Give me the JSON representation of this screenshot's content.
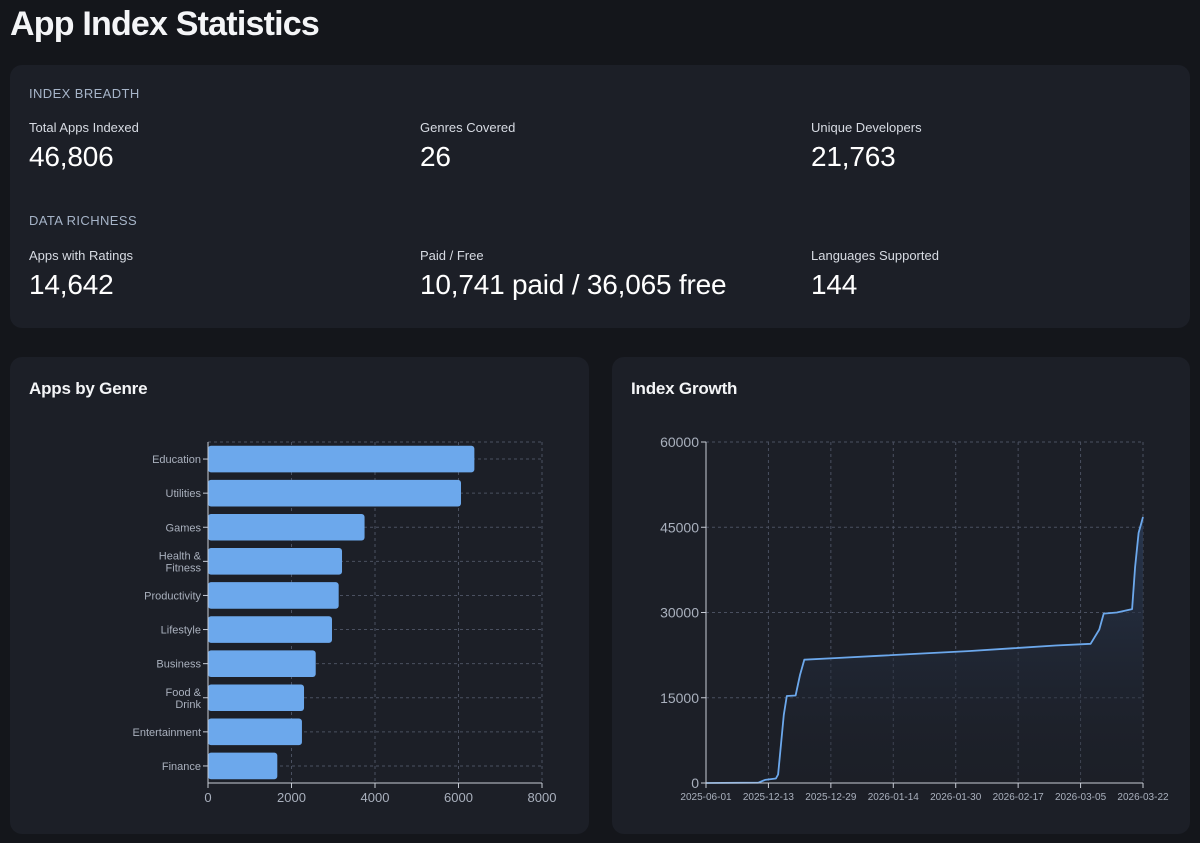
{
  "page": {
    "title": "App Index Statistics"
  },
  "stats": {
    "breadth": {
      "heading": "INDEX BREADTH",
      "items": [
        {
          "label": "Total Apps Indexed",
          "value": "46,806"
        },
        {
          "label": "Genres Covered",
          "value": "26"
        },
        {
          "label": "Unique Developers",
          "value": "21,763"
        }
      ]
    },
    "richness": {
      "heading": "DATA RICHNESS",
      "items": [
        {
          "label": "Apps with Ratings",
          "value": "14,642"
        },
        {
          "label": "Paid / Free",
          "value": "10,741 paid / 36,065 free"
        },
        {
          "label": "Languages Supported",
          "value": "144"
        }
      ]
    }
  },
  "colors": {
    "accent": "#6ca8ec",
    "background": "#14161b",
    "card": "#1c1f27"
  },
  "chart_data": [
    {
      "type": "bar",
      "orientation": "horizontal",
      "title": "Apps by Genre",
      "categories": [
        [
          "Education"
        ],
        [
          "Utilities"
        ],
        [
          "Games"
        ],
        [
          "Health &",
          "Fitness"
        ],
        [
          "Productivity"
        ],
        [
          "Lifestyle"
        ],
        [
          "Business"
        ],
        [
          "Food &",
          "Drink"
        ],
        [
          "Entertainment"
        ],
        [
          "Finance"
        ]
      ],
      "values": [
        6380,
        6060,
        3750,
        3210,
        3130,
        2970,
        2580,
        2300,
        2250,
        1660
      ],
      "xlim": [
        0,
        8000
      ],
      "xticks": [
        0,
        2000,
        4000,
        6000,
        8000
      ],
      "grid": true
    },
    {
      "type": "area",
      "title": "Index Growth",
      "x_labels": [
        "2025-06-01",
        "2025-12-13",
        "2025-12-29",
        "2026-01-14",
        "2026-01-30",
        "2026-02-17",
        "2026-03-05",
        "2026-03-22"
      ],
      "ylim": [
        0,
        60000
      ],
      "yticks": [
        0,
        15000,
        30000,
        45000,
        60000
      ],
      "grid": true,
      "points": [
        [
          0,
          0
        ],
        [
          0.12,
          60
        ],
        [
          0.127,
          300
        ],
        [
          0.135,
          550
        ],
        [
          0.16,
          800
        ],
        [
          0.165,
          1500
        ],
        [
          0.178,
          12000
        ],
        [
          0.185,
          15300
        ],
        [
          0.205,
          15400
        ],
        [
          0.215,
          19000
        ],
        [
          0.225,
          21700
        ],
        [
          0.3,
          22000
        ],
        [
          0.4,
          22400
        ],
        [
          0.5,
          22800
        ],
        [
          0.6,
          23200
        ],
        [
          0.7,
          23700
        ],
        [
          0.8,
          24200
        ],
        [
          0.88,
          24500
        ],
        [
          0.9,
          27000
        ],
        [
          0.91,
          29800
        ],
        [
          0.94,
          30000
        ],
        [
          0.975,
          30600
        ],
        [
          0.982,
          38000
        ],
        [
          0.99,
          44000
        ],
        [
          1.0,
          46806
        ]
      ]
    }
  ]
}
